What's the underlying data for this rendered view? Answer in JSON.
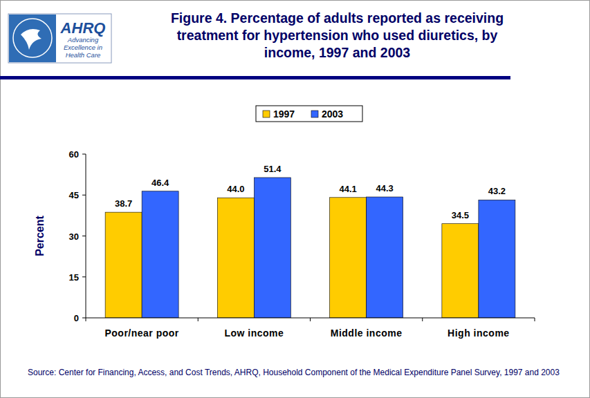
{
  "chart_data": {
    "type": "bar",
    "title": "Figure 4. Percentage of adults reported as receiving treatment for hypertension who used diuretics, by income, 1997 and 2003",
    "logo_text": {
      "name": "AHRQ",
      "tagline": "Advancing Excellence in Health Care"
    },
    "y_label": "Percent",
    "source": "Source: Center for Financing, Access, and Cost Trends, AHRQ, Household Component of the Medical Expenditure Panel Survey, 1997 and 2003",
    "categories": [
      "Poor/near poor",
      "Low income",
      "Middle income",
      "High income"
    ],
    "series": [
      {
        "name": "1997",
        "color": "#ffcc00",
        "values": [
          38.7,
          44.0,
          44.1,
          34.5
        ],
        "value_labels": [
          "38.7",
          "44.0",
          "44.1",
          "34.5"
        ]
      },
      {
        "name": "2003",
        "color": "#3366ff",
        "values": [
          46.4,
          51.4,
          44.3,
          43.2
        ],
        "value_labels": [
          "46.4",
          "51.4",
          "44.3",
          "43.2"
        ]
      }
    ],
    "ylim": [
      0,
      60
    ],
    "yticks": [
      0,
      15,
      30,
      45,
      60
    ],
    "grid": false,
    "legend": "top",
    "data_labels": true
  }
}
